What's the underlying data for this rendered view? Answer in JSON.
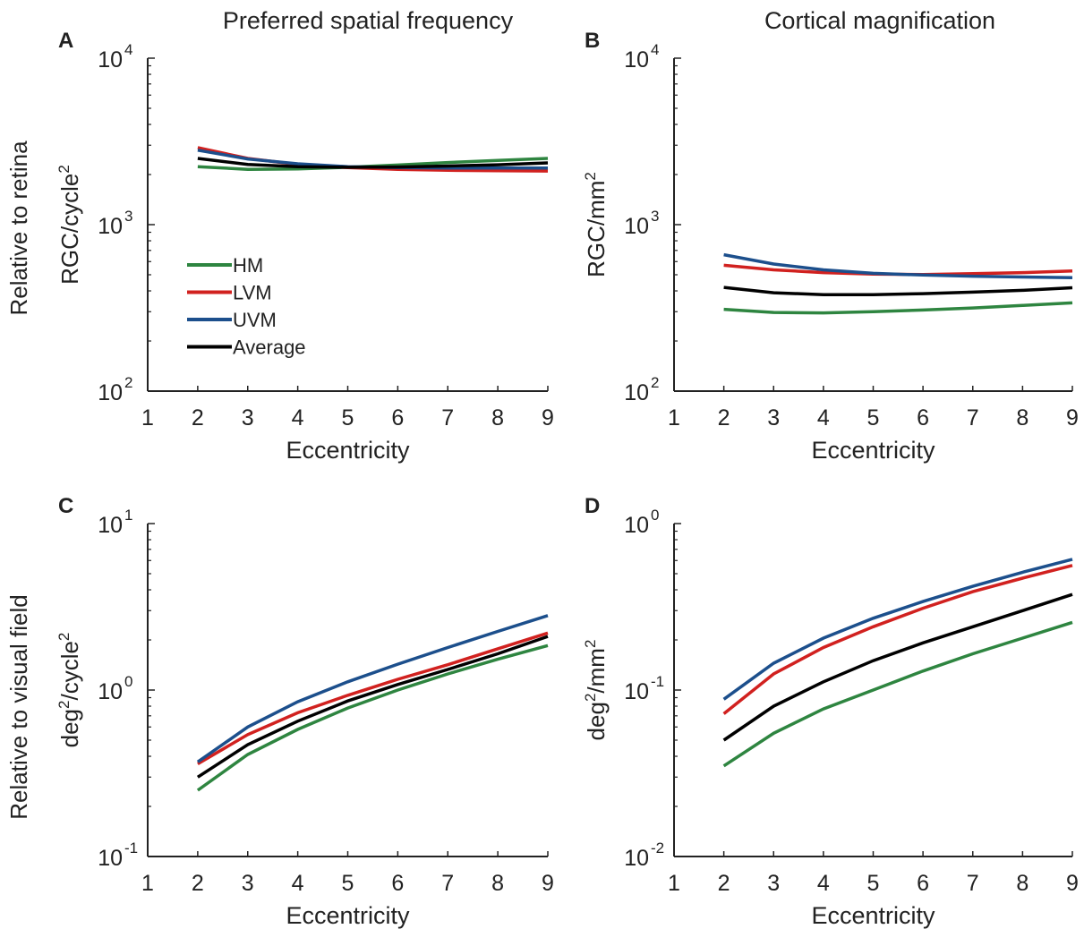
{
  "figure": {
    "column_titles": [
      "Preferred spatial frequency",
      "Cortical magnification"
    ],
    "row_titles": [
      "Relative to retina",
      "Relative to visual field"
    ]
  },
  "legend": {
    "panel": "A",
    "entries": [
      {
        "label": "HM",
        "color": "#2e8540"
      },
      {
        "label": "LVM",
        "color": "#d1211f"
      },
      {
        "label": "UVM",
        "color": "#1c4f8c"
      },
      {
        "label": "Average",
        "color": "#000000"
      }
    ]
  },
  "chart_data": [
    {
      "panel": "A",
      "type": "line",
      "ylabel": {
        "base": "RGC/cycle",
        "sup": "2"
      },
      "xlabel": "Eccentricity",
      "xlim": [
        1,
        9
      ],
      "ylim": [
        100,
        10000
      ],
      "yscale": "log",
      "xticks": [
        "1",
        "2",
        "3",
        "4",
        "5",
        "6",
        "7",
        "8",
        "9"
      ],
      "yticks": [
        {
          "base": "10",
          "exp": "2",
          "value": 100
        },
        {
          "base": "10",
          "exp": "3",
          "value": 1000
        },
        {
          "base": "10",
          "exp": "4",
          "value": 10000
        }
      ],
      "grid": false,
      "legend_position": "lower-left",
      "x": [
        2,
        3,
        4,
        5,
        6,
        7,
        8,
        9
      ],
      "series": [
        {
          "name": "HM",
          "color": "#2e8540",
          "values": [
            2230,
            2150,
            2160,
            2210,
            2280,
            2360,
            2430,
            2500
          ]
        },
        {
          "name": "LVM",
          "color": "#d1211f",
          "values": [
            2900,
            2500,
            2300,
            2200,
            2150,
            2120,
            2110,
            2100
          ]
        },
        {
          "name": "UVM",
          "color": "#1c4f8c",
          "values": [
            2800,
            2480,
            2320,
            2230,
            2200,
            2190,
            2190,
            2190
          ]
        },
        {
          "name": "Average",
          "color": "#000000",
          "values": [
            2500,
            2300,
            2230,
            2210,
            2220,
            2250,
            2290,
            2350
          ]
        }
      ]
    },
    {
      "panel": "B",
      "type": "line",
      "ylabel": {
        "base": "RGC/mm",
        "sup": "2"
      },
      "xlabel": "Eccentricity",
      "xlim": [
        1,
        9
      ],
      "ylim": [
        100,
        10000
      ],
      "yscale": "log",
      "xticks": [
        "1",
        "2",
        "3",
        "4",
        "5",
        "6",
        "7",
        "8",
        "9"
      ],
      "yticks": [
        {
          "base": "10",
          "exp": "2",
          "value": 100
        },
        {
          "base": "10",
          "exp": "3",
          "value": 1000
        },
        {
          "base": "10",
          "exp": "4",
          "value": 10000
        }
      ],
      "grid": false,
      "x": [
        2,
        3,
        4,
        5,
        6,
        7,
        8,
        9
      ],
      "series": [
        {
          "name": "HM",
          "color": "#2e8540",
          "values": [
            310,
            297,
            295,
            300,
            307,
            316,
            327,
            339
          ]
        },
        {
          "name": "LVM",
          "color": "#d1211f",
          "values": [
            570,
            535,
            515,
            505,
            502,
            508,
            515,
            527
          ]
        },
        {
          "name": "UVM",
          "color": "#1c4f8c",
          "values": [
            660,
            580,
            535,
            510,
            498,
            490,
            485,
            480
          ]
        },
        {
          "name": "Average",
          "color": "#000000",
          "values": [
            420,
            390,
            380,
            380,
            385,
            393,
            403,
            418
          ]
        }
      ]
    },
    {
      "panel": "C",
      "type": "line",
      "ylabel": {
        "base": "deg",
        "sup": "2",
        "rest": "/cycle",
        "sup2": "2"
      },
      "xlabel": "Eccentricity",
      "xlim": [
        1,
        9
      ],
      "ylim": [
        0.1,
        10
      ],
      "yscale": "log",
      "xticks": [
        "1",
        "2",
        "3",
        "4",
        "5",
        "6",
        "7",
        "8",
        "9"
      ],
      "yticks": [
        {
          "base": "10",
          "exp": "-1",
          "value": 0.1
        },
        {
          "base": "10",
          "exp": "0",
          "value": 1
        },
        {
          "base": "10",
          "exp": "1",
          "value": 10
        }
      ],
      "grid": false,
      "x": [
        2,
        3,
        4,
        5,
        6,
        7,
        8,
        9
      ],
      "series": [
        {
          "name": "HM",
          "color": "#2e8540",
          "values": [
            0.25,
            0.41,
            0.58,
            0.78,
            1.0,
            1.25,
            1.53,
            1.85
          ]
        },
        {
          "name": "LVM",
          "color": "#d1211f",
          "values": [
            0.36,
            0.54,
            0.73,
            0.93,
            1.16,
            1.42,
            1.77,
            2.2
          ]
        },
        {
          "name": "UVM",
          "color": "#1c4f8c",
          "values": [
            0.37,
            0.6,
            0.85,
            1.12,
            1.43,
            1.8,
            2.25,
            2.8
          ]
        },
        {
          "name": "Average",
          "color": "#000000",
          "values": [
            0.3,
            0.47,
            0.65,
            0.86,
            1.08,
            1.33,
            1.65,
            2.1
          ]
        }
      ]
    },
    {
      "panel": "D",
      "type": "line",
      "ylabel": {
        "base": "deg",
        "sup": "2",
        "rest": "/mm",
        "sup2": "2"
      },
      "xlabel": "Eccentricity",
      "xlim": [
        1,
        9
      ],
      "ylim": [
        0.01,
        1
      ],
      "yscale": "log",
      "xticks": [
        "1",
        "2",
        "3",
        "4",
        "5",
        "6",
        "7",
        "8",
        "9"
      ],
      "yticks": [
        {
          "base": "10",
          "exp": "-2",
          "value": 0.01
        },
        {
          "base": "10",
          "exp": "-1",
          "value": 0.1
        },
        {
          "base": "10",
          "exp": "0",
          "value": 1
        }
      ],
      "grid": false,
      "x": [
        2,
        3,
        4,
        5,
        6,
        7,
        8,
        9
      ],
      "series": [
        {
          "name": "HM",
          "color": "#2e8540",
          "values": [
            0.035,
            0.055,
            0.077,
            0.1,
            0.13,
            0.165,
            0.205,
            0.255
          ]
        },
        {
          "name": "LVM",
          "color": "#d1211f",
          "values": [
            0.072,
            0.125,
            0.18,
            0.24,
            0.31,
            0.39,
            0.47,
            0.56
          ]
        },
        {
          "name": "UVM",
          "color": "#1c4f8c",
          "values": [
            0.088,
            0.145,
            0.205,
            0.27,
            0.34,
            0.42,
            0.51,
            0.61
          ]
        },
        {
          "name": "Average",
          "color": "#000000",
          "values": [
            0.05,
            0.08,
            0.112,
            0.15,
            0.192,
            0.24,
            0.3,
            0.375
          ]
        }
      ]
    }
  ]
}
